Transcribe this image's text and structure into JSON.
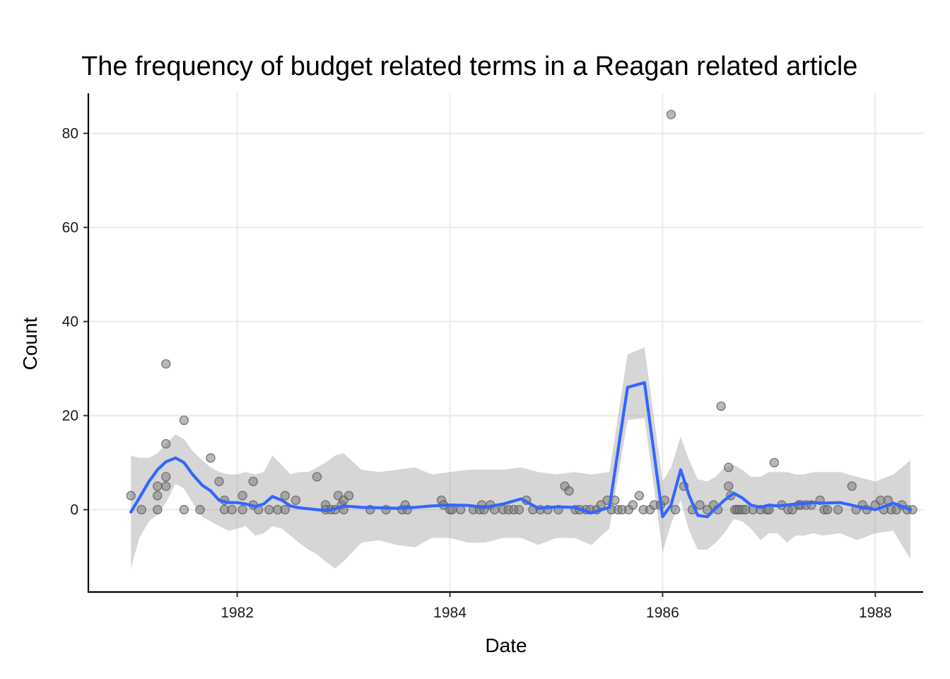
{
  "chart_data": {
    "type": "scatter",
    "title": "The frequency of budget related terms in a Reagan related article",
    "xlabel": "Date",
    "ylabel": "Count",
    "xlim": [
      1980.6,
      1988.45
    ],
    "ylim": [
      -17.5,
      88.5
    ],
    "x_ticks": [
      1982,
      1984,
      1986,
      1988
    ],
    "x_tick_labels": [
      "1982",
      "1984",
      "1986",
      "1988"
    ],
    "y_ticks": [
      0,
      20,
      40,
      60,
      80
    ],
    "y_tick_labels": [
      "0",
      "20",
      "40",
      "60",
      "80"
    ],
    "grid": true,
    "colors": {
      "points": "#7f7f7f",
      "smooth": "#3366ff",
      "band": "#999999"
    },
    "series": [
      {
        "type": "scatter",
        "points": [
          [
            1981.0,
            3
          ],
          [
            1981.1,
            0
          ],
          [
            1981.25,
            0
          ],
          [
            1981.25,
            5
          ],
          [
            1981.25,
            3
          ],
          [
            1981.33,
            14
          ],
          [
            1981.33,
            7
          ],
          [
            1981.33,
            5
          ],
          [
            1981.33,
            31
          ],
          [
            1981.5,
            19
          ],
          [
            1981.5,
            0
          ],
          [
            1981.65,
            0
          ],
          [
            1981.75,
            11
          ],
          [
            1981.83,
            6
          ],
          [
            1981.88,
            2
          ],
          [
            1981.88,
            0
          ],
          [
            1981.95,
            0
          ],
          [
            1982.05,
            3
          ],
          [
            1982.05,
            0
          ],
          [
            1982.15,
            6
          ],
          [
            1982.15,
            1
          ],
          [
            1982.2,
            0
          ],
          [
            1982.3,
            0
          ],
          [
            1982.38,
            0
          ],
          [
            1982.45,
            0
          ],
          [
            1982.45,
            3
          ],
          [
            1982.55,
            2
          ],
          [
            1982.75,
            7
          ],
          [
            1982.83,
            1
          ],
          [
            1982.83,
            0
          ],
          [
            1982.88,
            0
          ],
          [
            1982.92,
            0
          ],
          [
            1982.95,
            3
          ],
          [
            1982.98,
            1
          ],
          [
            1983.0,
            2
          ],
          [
            1983.0,
            0
          ],
          [
            1983.05,
            3
          ],
          [
            1983.25,
            0
          ],
          [
            1983.4,
            0
          ],
          [
            1983.55,
            0
          ],
          [
            1983.58,
            1
          ],
          [
            1983.6,
            0
          ],
          [
            1983.92,
            2
          ],
          [
            1983.94,
            1
          ],
          [
            1984.0,
            0
          ],
          [
            1984.02,
            0
          ],
          [
            1984.1,
            0
          ],
          [
            1984.22,
            0
          ],
          [
            1984.28,
            0
          ],
          [
            1984.3,
            1
          ],
          [
            1984.32,
            0
          ],
          [
            1984.38,
            1
          ],
          [
            1984.42,
            0
          ],
          [
            1984.5,
            0
          ],
          [
            1984.55,
            0
          ],
          [
            1984.6,
            0
          ],
          [
            1984.65,
            0
          ],
          [
            1984.72,
            2
          ],
          [
            1984.78,
            0
          ],
          [
            1984.85,
            0
          ],
          [
            1984.92,
            0
          ],
          [
            1985.02,
            0
          ],
          [
            1985.08,
            5
          ],
          [
            1985.12,
            4
          ],
          [
            1985.18,
            0
          ],
          [
            1985.22,
            0
          ],
          [
            1985.28,
            0
          ],
          [
            1985.32,
            0
          ],
          [
            1985.38,
            0
          ],
          [
            1985.42,
            1
          ],
          [
            1985.48,
            2
          ],
          [
            1985.52,
            0
          ],
          [
            1985.55,
            2
          ],
          [
            1985.58,
            0
          ],
          [
            1985.62,
            0
          ],
          [
            1985.68,
            0
          ],
          [
            1985.72,
            1
          ],
          [
            1985.78,
            3
          ],
          [
            1985.82,
            0
          ],
          [
            1985.88,
            0
          ],
          [
            1985.92,
            1
          ],
          [
            1985.98,
            1
          ],
          [
            1986.02,
            2
          ],
          [
            1986.08,
            84
          ],
          [
            1986.12,
            0
          ],
          [
            1986.2,
            5
          ],
          [
            1986.28,
            0
          ],
          [
            1986.35,
            1
          ],
          [
            1986.42,
            0
          ],
          [
            1986.48,
            1
          ],
          [
            1986.52,
            0
          ],
          [
            1986.55,
            22
          ],
          [
            1986.62,
            9
          ],
          [
            1986.62,
            5
          ],
          [
            1986.64,
            3
          ],
          [
            1986.68,
            0
          ],
          [
            1986.7,
            0
          ],
          [
            1986.72,
            0
          ],
          [
            1986.75,
            0
          ],
          [
            1986.78,
            0
          ],
          [
            1986.85,
            0
          ],
          [
            1986.92,
            0
          ],
          [
            1986.98,
            0
          ],
          [
            1987.0,
            0
          ],
          [
            1987.05,
            10
          ],
          [
            1987.12,
            1
          ],
          [
            1987.18,
            0
          ],
          [
            1987.22,
            0
          ],
          [
            1987.28,
            1
          ],
          [
            1987.3,
            1
          ],
          [
            1987.35,
            1
          ],
          [
            1987.4,
            1
          ],
          [
            1987.48,
            2
          ],
          [
            1987.52,
            0
          ],
          [
            1987.55,
            0
          ],
          [
            1987.65,
            0
          ],
          [
            1987.78,
            5
          ],
          [
            1987.82,
            0
          ],
          [
            1987.88,
            1
          ],
          [
            1987.92,
            0
          ],
          [
            1988.0,
            1
          ],
          [
            1988.05,
            2
          ],
          [
            1988.08,
            0
          ],
          [
            1988.12,
            2
          ],
          [
            1988.15,
            0
          ],
          [
            1988.2,
            0
          ],
          [
            1988.25,
            1
          ],
          [
            1988.3,
            0
          ],
          [
            1988.35,
            0
          ]
        ]
      },
      {
        "type": "line",
        "x": [
          1981.0,
          1981.08,
          1981.17,
          1981.25,
          1981.33,
          1981.42,
          1981.5,
          1981.58,
          1981.67,
          1981.75,
          1981.83,
          1981.92,
          1982.0,
          1982.08,
          1982.17,
          1982.25,
          1982.33,
          1982.42,
          1982.5,
          1982.58,
          1982.67,
          1982.75,
          1982.83,
          1982.92,
          1983.0,
          1983.17,
          1983.33,
          1983.5,
          1983.67,
          1983.83,
          1984.0,
          1984.17,
          1984.33,
          1984.5,
          1984.67,
          1984.83,
          1985.0,
          1985.17,
          1985.33,
          1985.5,
          1985.67,
          1985.83,
          1986.0,
          1986.08,
          1986.17,
          1986.25,
          1986.33,
          1986.42,
          1986.5,
          1986.58,
          1986.67,
          1986.75,
          1986.83,
          1986.92,
          1987.0,
          1987.08,
          1987.17,
          1987.25,
          1987.33,
          1987.42,
          1987.5,
          1987.67,
          1987.83,
          1988.0,
          1988.17,
          1988.33
        ],
        "y": [
          -0.5,
          2.5,
          6.0,
          8.5,
          10.2,
          11.0,
          10.0,
          7.5,
          5.2,
          4.0,
          2.0,
          1.5,
          1.5,
          1.2,
          0.7,
          1.2,
          2.8,
          2.0,
          0.8,
          0.4,
          0.2,
          0.0,
          -0.2,
          0.2,
          0.8,
          0.5,
          0.4,
          0.3,
          0.5,
          0.8,
          1.0,
          0.9,
          0.5,
          1.2,
          2.3,
          0.3,
          0.6,
          0.5,
          -0.7,
          0.5,
          26.0,
          27.0,
          -1.5,
          1.0,
          8.5,
          3.0,
          -1.2,
          -1.5,
          0.3,
          2.0,
          3.5,
          2.5,
          1.0,
          0.5,
          1.0,
          0.8,
          1.0,
          1.2,
          1.3,
          1.5,
          1.4,
          1.5,
          0.7,
          0.0,
          1.4,
          0.0
        ],
        "ci_lower": [
          -12.5,
          -6,
          -2.5,
          -1,
          1.5,
          5.5,
          4.5,
          1.5,
          -1.5,
          -2.5,
          -3.5,
          -4.5,
          -4.0,
          -3.5,
          -5.5,
          -5.0,
          -3.5,
          -4.0,
          -5.5,
          -7.0,
          -8.5,
          -9.5,
          -11.0,
          -12.5,
          -11.0,
          -7.0,
          -6.5,
          -7.5,
          -8.0,
          -6.0,
          -6.0,
          -7.0,
          -7.0,
          -6.0,
          -6.0,
          -7.5,
          -6.0,
          -6.0,
          -7.5,
          -4.0,
          19.0,
          19.5,
          -9.0,
          -3.0,
          2.0,
          -4.5,
          -8.5,
          -8.5,
          -7.0,
          -5.0,
          -2.0,
          -2.5,
          -4.0,
          -6.5,
          -5.0,
          -5.0,
          -7.0,
          -5.5,
          -5.5,
          -5.0,
          -5.5,
          -5.0,
          -6.5,
          -5.0,
          -4.5,
          -10.5
        ],
        "ci_upper": [
          11.5,
          11.0,
          11.0,
          12.0,
          14.0,
          16.0,
          15.0,
          12.5,
          10.5,
          9.0,
          8.0,
          7.5,
          7.5,
          8.0,
          7.5,
          8.0,
          11.5,
          9.5,
          7.5,
          8.0,
          8.0,
          9.0,
          10.0,
          11.5,
          12.0,
          8.5,
          8.0,
          8.5,
          9.0,
          7.5,
          8.0,
          8.5,
          8.5,
          8.5,
          9.0,
          8.0,
          7.5,
          8.0,
          7.5,
          8.0,
          33.0,
          34.5,
          6.0,
          9.0,
          15.5,
          10.5,
          6.5,
          6.0,
          7.0,
          9.0,
          9.5,
          8.5,
          7.0,
          7.0,
          8.0,
          8.0,
          8.0,
          7.5,
          7.5,
          8.0,
          8.0,
          8.0,
          7.0,
          6.0,
          7.5,
          10.5
        ]
      }
    ]
  }
}
